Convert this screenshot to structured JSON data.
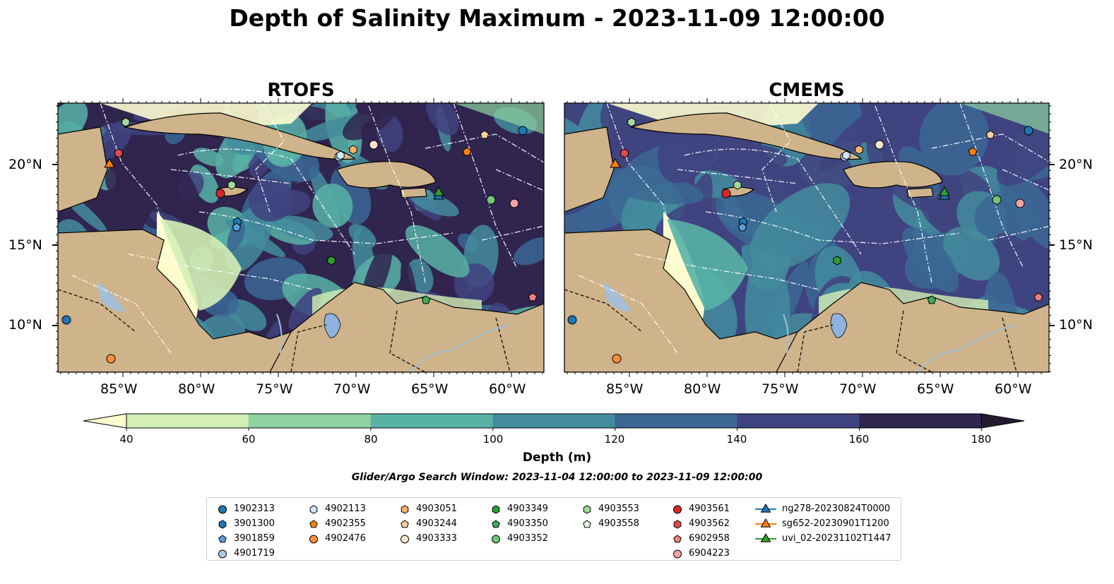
{
  "title": "Depth of Salinity Maximum - 2023-11-09 12:00:00",
  "panels": [
    {
      "title": "RTOFS"
    },
    {
      "title": "CMEMS"
    }
  ],
  "lat_ticks": [
    "20°N",
    "15°N",
    "10°N"
  ],
  "lon_ticks": [
    "85°W",
    "80°W",
    "75°W",
    "70°W",
    "65°W",
    "60°W"
  ],
  "colorbar": {
    "label": "Depth (m)",
    "ticks": [
      "40",
      "60",
      "80",
      "100",
      "120",
      "140",
      "160",
      "180"
    ],
    "colors": [
      "#fdfccf",
      "#d4efb5",
      "#8ed3a0",
      "#58b2a6",
      "#438c9d",
      "#3b6794",
      "#3f437f",
      "#30254f",
      "#261a30"
    ],
    "extend": "both"
  },
  "search_window": "Glider/Argo Search Window: 2023-11-04 12:00:00 to 2023-11-09 12:00:00",
  "legend": [
    {
      "label": "1902313",
      "marker": "circle",
      "color": "#1f77b4"
    },
    {
      "label": "3901300",
      "marker": "hexagon",
      "color": "#1f77b4"
    },
    {
      "label": "3901859",
      "marker": "pentagon",
      "color": "#5a9fd4"
    },
    {
      "label": "4901719",
      "marker": "circle",
      "color": "#aec7e8"
    },
    {
      "label": "4902113",
      "marker": "hexagon",
      "color": "#cfe6f7"
    },
    {
      "label": "4902355",
      "marker": "pentagon",
      "color": "#ff7f0e"
    },
    {
      "label": "4902476",
      "marker": "circle",
      "color": "#fd8d3c"
    },
    {
      "label": "4903051",
      "marker": "hexagon",
      "color": "#fdae6b"
    },
    {
      "label": "4903244",
      "marker": "pentagon",
      "color": "#fdd0a2"
    },
    {
      "label": "4903333",
      "marker": "circle",
      "color": "#fee6ce"
    },
    {
      "label": "4903349",
      "marker": "hexagon",
      "color": "#2ca02c"
    },
    {
      "label": "4903350",
      "marker": "pentagon",
      "color": "#41ab5d"
    },
    {
      "label": "4903352",
      "marker": "circle",
      "color": "#74c476"
    },
    {
      "label": "4903553",
      "marker": "hexagon",
      "color": "#a1d99b"
    },
    {
      "label": "4903558",
      "marker": "pentagon",
      "color": "#e5f5e0"
    },
    {
      "label": "4903561",
      "marker": "circle",
      "color": "#d62728"
    },
    {
      "label": "4903562",
      "marker": "hexagon",
      "color": "#e34a4a"
    },
    {
      "label": "6902958",
      "marker": "pentagon",
      "color": "#f08080"
    },
    {
      "label": "6904223",
      "marker": "circle",
      "color": "#f4a3a3"
    },
    {
      "label": "ng278-20230824T0000",
      "marker": "triangle",
      "color": "#1f77b4"
    },
    {
      "label": "sg652-20230901T1200",
      "marker": "triangle",
      "color": "#ff7f0e"
    },
    {
      "label": "uvi_02-20231102T1447",
      "marker": "triangle",
      "color": "#2ca02c"
    }
  ],
  "colors": {
    "land": "#cfb38a",
    "lake": "#8fb3e0",
    "river": "#a4bfd6"
  }
}
